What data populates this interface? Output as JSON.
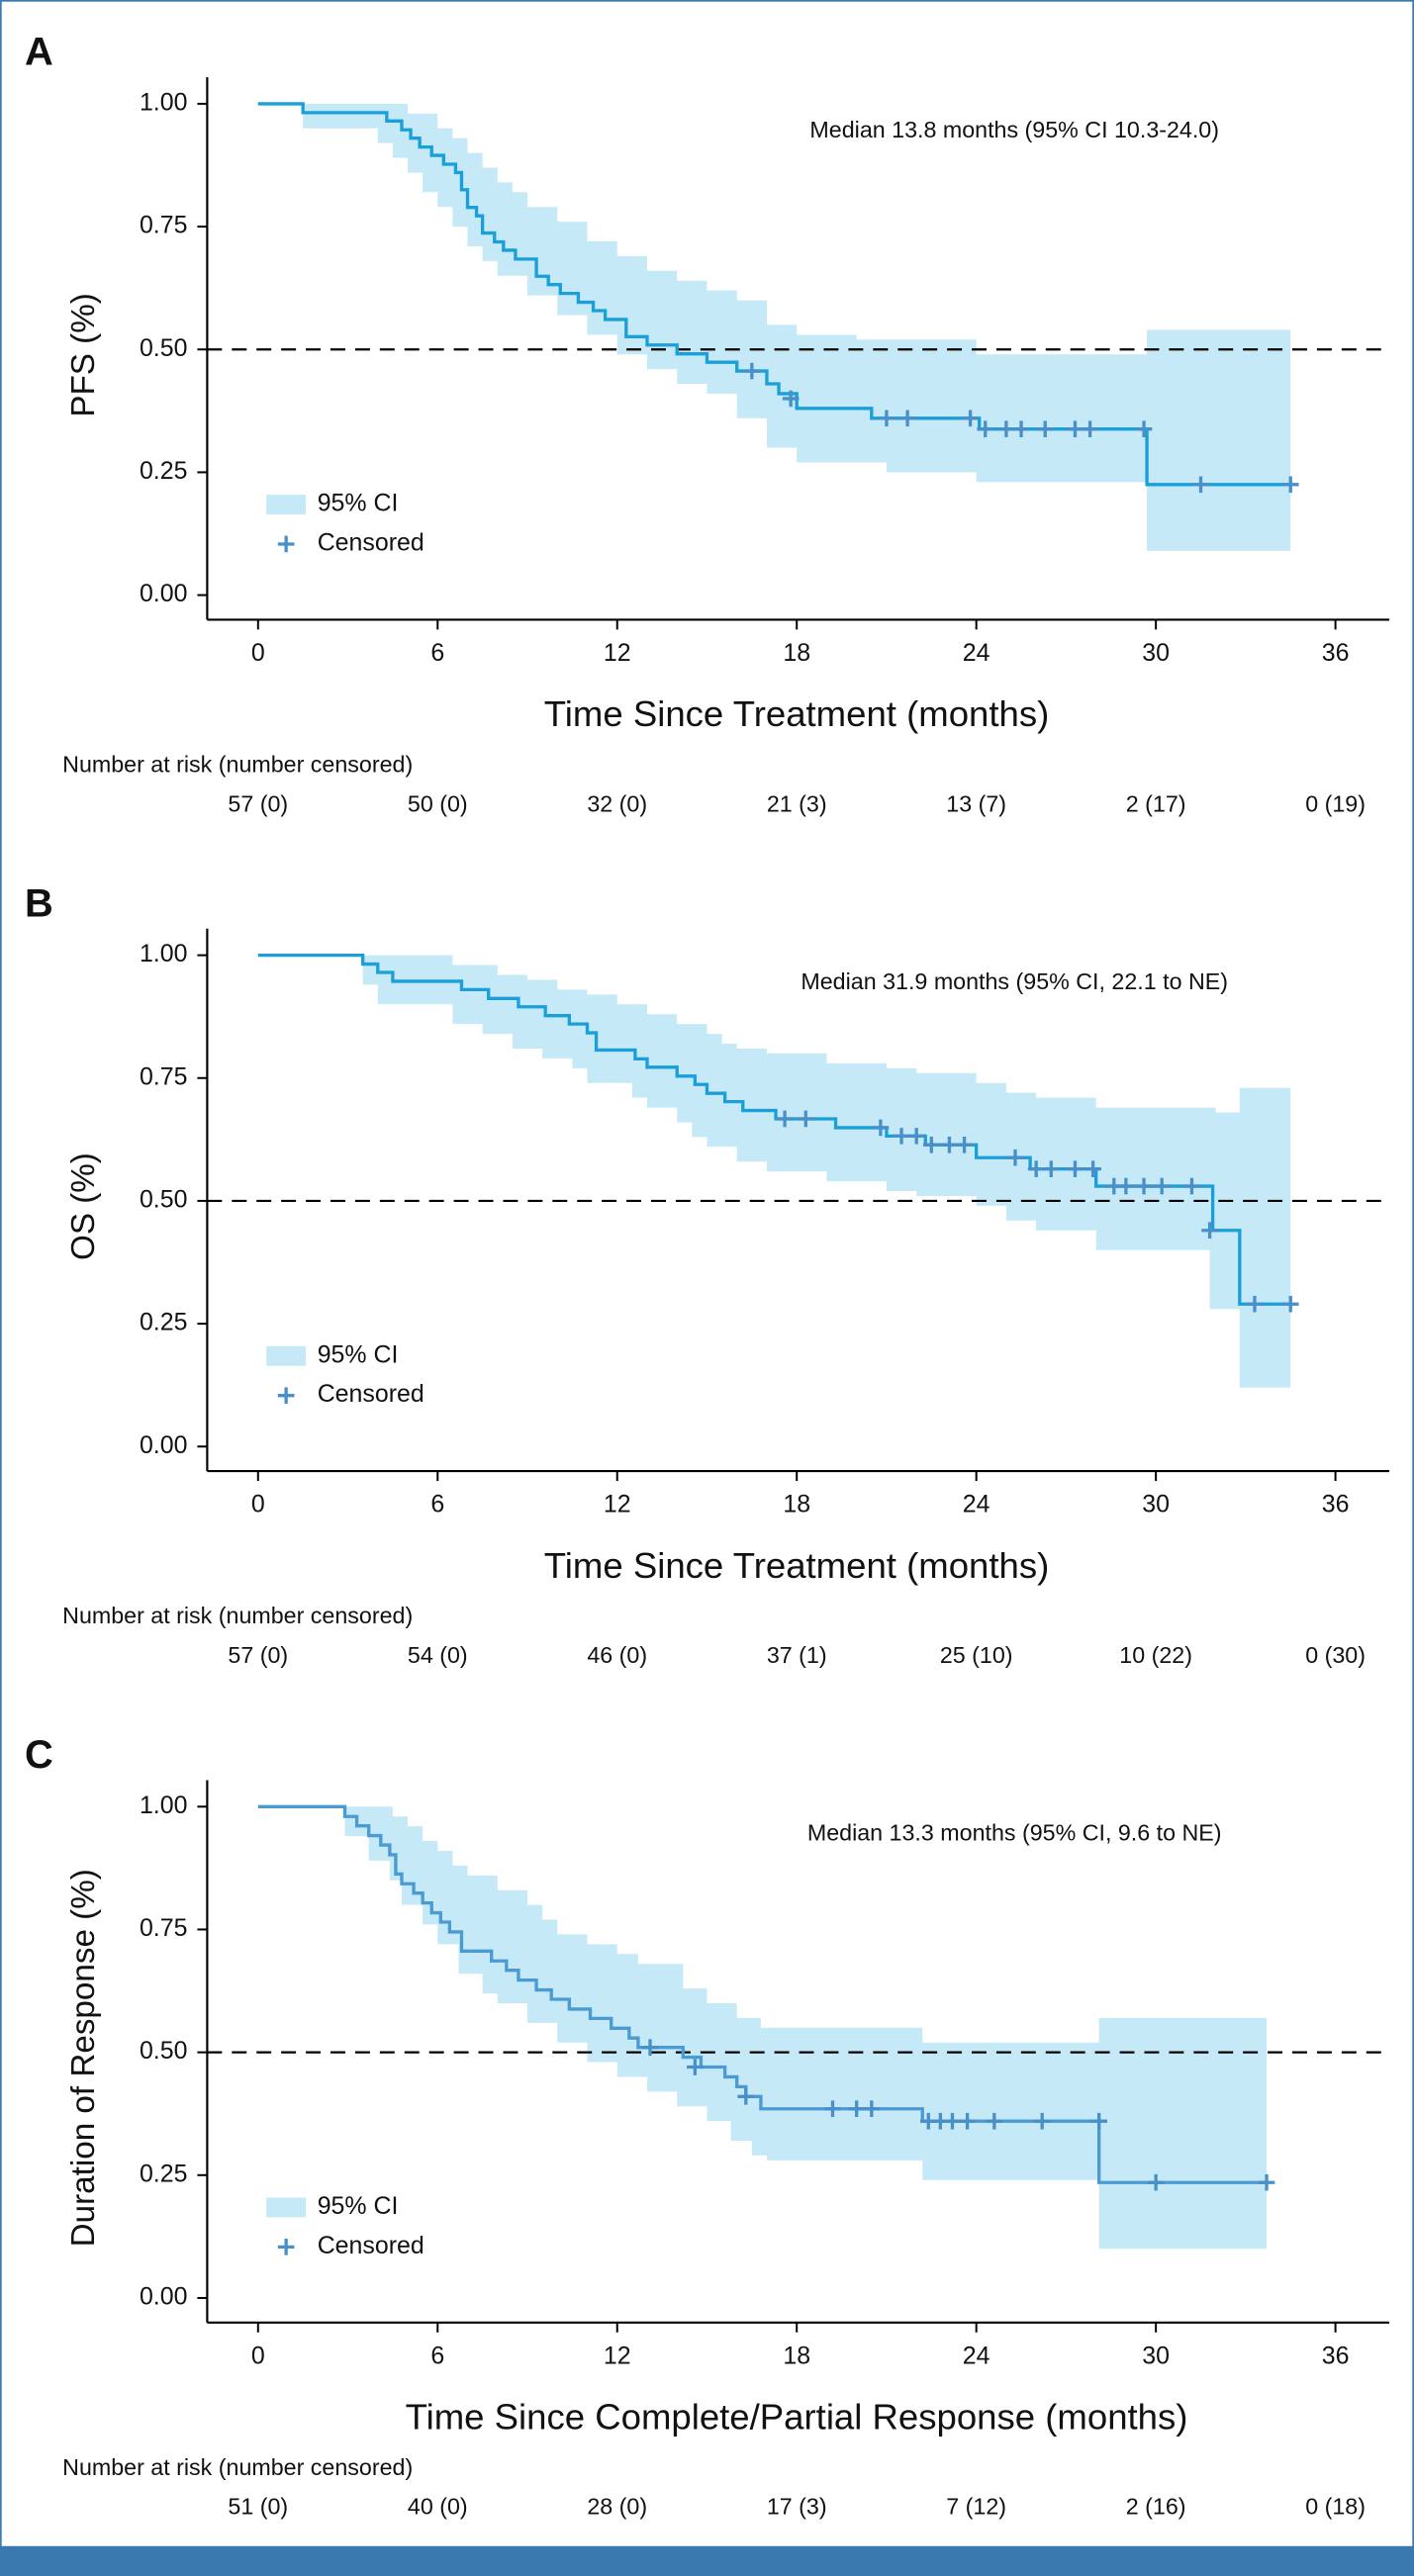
{
  "chart_data": [
    {
      "type": "step",
      "panel": "A",
      "annotation": "Median 13.8 months (95% CI 10.3-24.0)",
      "xlabel": "Time Since Treatment (months)",
      "ylabel": "PFS (%)",
      "xlim": [
        -1.7,
        37.8
      ],
      "xticks": [
        0,
        6,
        12,
        18,
        24,
        30,
        36
      ],
      "ylim": [
        -0.05,
        1.054
      ],
      "yticks": [
        {
          "value": 1,
          "label": "1.00"
        },
        {
          "value": 0.75,
          "label": "0.75"
        },
        {
          "value": 0.5,
          "label": "0.50"
        },
        {
          "value": 0.25,
          "label": "0.25"
        },
        {
          "value": 0,
          "label": "0.00"
        }
      ],
      "reference_line": 0.5,
      "color": "#1a9fd9",
      "x": [
        0,
        1.5,
        4.3,
        4.8,
        5.1,
        5.4,
        5.8,
        6.2,
        6.6,
        6.8,
        7.0,
        7.3,
        7.5,
        7.9,
        8.2,
        8.6,
        9.3,
        9.7,
        10.1,
        10.7,
        11.2,
        11.6,
        12.3,
        13.0,
        14.0,
        15.0,
        16.0,
        17.0,
        17.4,
        18.0,
        20.5,
        24.1,
        29.7,
        34.5
      ],
      "values": [
        1,
        0.982,
        0.965,
        0.947,
        0.93,
        0.912,
        0.895,
        0.877,
        0.86,
        0.825,
        0.789,
        0.772,
        0.737,
        0.719,
        0.702,
        0.684,
        0.649,
        0.632,
        0.614,
        0.596,
        0.579,
        0.561,
        0.526,
        0.509,
        0.491,
        0.474,
        0.456,
        0.43,
        0.41,
        0.38,
        0.36,
        0.338,
        0.225,
        0.225
      ],
      "ci_upper": {
        "x": [
          0,
          5,
          6,
          6.5,
          7,
          7.5,
          8,
          8.5,
          9,
          10,
          11,
          12,
          13,
          14,
          15,
          16,
          17,
          18,
          20,
          24,
          29.7,
          34.5
        ],
        "values": [
          1,
          0.98,
          0.95,
          0.93,
          0.9,
          0.87,
          0.84,
          0.82,
          0.79,
          0.76,
          0.72,
          0.69,
          0.66,
          0.64,
          0.62,
          0.6,
          0.55,
          0.53,
          0.52,
          0.49,
          0.54,
          0.54
        ]
      },
      "ci_lower": {
        "x": [
          0,
          1.5,
          4,
          4.5,
          5,
          5.5,
          6,
          6.5,
          7,
          7.5,
          8,
          9,
          10,
          11,
          12,
          13,
          14,
          15,
          16,
          17,
          18,
          21,
          24,
          29.7,
          34.5
        ],
        "values": [
          1,
          0.95,
          0.92,
          0.89,
          0.86,
          0.82,
          0.79,
          0.75,
          0.71,
          0.68,
          0.65,
          0.61,
          0.57,
          0.53,
          0.49,
          0.46,
          0.43,
          0.41,
          0.36,
          0.3,
          0.27,
          0.25,
          0.23,
          0.09,
          0.09
        ]
      },
      "ci": {
        "name": "95% CI",
        "color": "#c5e9f7"
      },
      "censored": {
        "name": "Censored",
        "color": "#4a90c8",
        "x": [
          16.5,
          17.8,
          21,
          21.7,
          23.8,
          24.3,
          25,
          25.5,
          26.3,
          27.3,
          27.8,
          29.6,
          31.5,
          34.5
        ],
        "values": [
          0.456,
          0.4,
          0.36,
          0.36,
          0.36,
          0.338,
          0.338,
          0.338,
          0.338,
          0.338,
          0.338,
          0.338,
          0.225,
          0.225
        ]
      },
      "risk_table_title": "Number at risk (number censored)",
      "risk_table": [
        "57 (0)",
        "50 (0)",
        "32 (0)",
        "21 (3)",
        "13 (7)",
        "2 (17)",
        "0 (19)"
      ]
    },
    {
      "type": "step",
      "panel": "B",
      "annotation": "Median 31.9 months (95% CI, 22.1 to NE)",
      "xlabel": "Time Since Treatment (months)",
      "ylabel": "OS (%)",
      "xlim": [
        -1.7,
        37.8
      ],
      "xticks": [
        0,
        6,
        12,
        18,
        24,
        30,
        36
      ],
      "ylim": [
        -0.05,
        1.054
      ],
      "yticks": [
        {
          "value": 1,
          "label": "1.00"
        },
        {
          "value": 0.75,
          "label": "0.75"
        },
        {
          "value": 0.5,
          "label": "0.50"
        },
        {
          "value": 0.25,
          "label": "0.25"
        },
        {
          "value": 0,
          "label": "0.00"
        }
      ],
      "reference_line": 0.5,
      "color": "#1a9fd9",
      "x": [
        0,
        3.5,
        4,
        4.5,
        6.8,
        7.7,
        8.7,
        9.6,
        10.4,
        11.0,
        11.3,
        12.6,
        13.0,
        14.0,
        14.6,
        15.0,
        15.6,
        16.2,
        17.3,
        19.3,
        21.0,
        22.3,
        24.0,
        25.8,
        28.0,
        31.9,
        32.8,
        34.5
      ],
      "values": [
        1,
        0.982,
        0.965,
        0.947,
        0.93,
        0.912,
        0.895,
        0.877,
        0.86,
        0.842,
        0.807,
        0.789,
        0.772,
        0.754,
        0.737,
        0.719,
        0.702,
        0.684,
        0.667,
        0.649,
        0.632,
        0.614,
        0.588,
        0.565,
        0.53,
        0.44,
        0.29,
        0.29
      ],
      "ci_upper": {
        "x": [
          0,
          6.5,
          8,
          9,
          10,
          11,
          12,
          13,
          14,
          15,
          15.5,
          16,
          17,
          19,
          21,
          22,
          24,
          25,
          26,
          28,
          32,
          32.8,
          34.5
        ],
        "values": [
          1,
          0.98,
          0.96,
          0.95,
          0.93,
          0.92,
          0.9,
          0.88,
          0.86,
          0.84,
          0.82,
          0.81,
          0.8,
          0.78,
          0.77,
          0.76,
          0.74,
          0.72,
          0.71,
          0.69,
          0.68,
          0.73,
          0.73
        ]
      },
      "ci_lower": {
        "x": [
          0,
          3.5,
          4,
          6.5,
          7.5,
          8.5,
          9.5,
          10.5,
          11,
          12.5,
          13,
          14,
          14.5,
          15,
          16,
          17,
          19,
          21,
          22,
          24,
          25,
          26,
          28,
          31.8,
          32.8,
          34.5
        ],
        "values": [
          1,
          0.94,
          0.9,
          0.86,
          0.84,
          0.81,
          0.79,
          0.77,
          0.74,
          0.71,
          0.69,
          0.66,
          0.63,
          0.61,
          0.58,
          0.56,
          0.54,
          0.52,
          0.51,
          0.49,
          0.46,
          0.44,
          0.4,
          0.28,
          0.12,
          0.12
        ]
      },
      "ci": {
        "name": "95% CI",
        "color": "#c5e9f7"
      },
      "censored": {
        "name": "Censored",
        "color": "#4a90c8",
        "x": [
          17.6,
          18.3,
          20.8,
          21.5,
          22,
          22.5,
          23.1,
          23.6,
          25.3,
          26,
          26.5,
          27.3,
          27.9,
          28.6,
          29,
          29.6,
          30.2,
          31.2,
          31.8,
          33.3,
          34.5
        ],
        "values": [
          0.667,
          0.667,
          0.649,
          0.632,
          0.632,
          0.614,
          0.614,
          0.614,
          0.588,
          0.565,
          0.565,
          0.565,
          0.565,
          0.53,
          0.53,
          0.53,
          0.53,
          0.53,
          0.44,
          0.29,
          0.29
        ]
      },
      "risk_table_title": "Number at risk (number censored)",
      "risk_table": [
        "57 (0)",
        "54 (0)",
        "46 (0)",
        "37 (1)",
        "25 (10)",
        "10 (22)",
        "0 (30)"
      ]
    },
    {
      "type": "step",
      "panel": "C",
      "annotation": "Median 13.3 months (95% CI, 9.6 to NE)",
      "xlabel": "Time Since Complete/Partial Response (months)",
      "ylabel": "Duration of Response (%)",
      "xlim": [
        -1.7,
        37.8
      ],
      "xticks": [
        0,
        6,
        12,
        18,
        24,
        30,
        36
      ],
      "ylim": [
        -0.05,
        1.054
      ],
      "yticks": [
        {
          "value": 1,
          "label": "1.00"
        },
        {
          "value": 0.75,
          "label": "0.75"
        },
        {
          "value": 0.5,
          "label": "0.50"
        },
        {
          "value": 0.25,
          "label": "0.25"
        },
        {
          "value": 0,
          "label": "0.00"
        }
      ],
      "reference_line": 0.5,
      "color": "#4a9ad4",
      "x": [
        0,
        2.9,
        3.3,
        3.7,
        4.1,
        4.4,
        4.6,
        4.8,
        5.2,
        5.5,
        5.8,
        6.1,
        6.4,
        6.8,
        7.8,
        8.3,
        8.7,
        9.3,
        9.8,
        10.4,
        11.1,
        11.8,
        12.4,
        12.7,
        14.2,
        14.8,
        15.6,
        16.0,
        16.3,
        16.8,
        22.2,
        28.1,
        33.7
      ],
      "values": [
        1,
        0.98,
        0.961,
        0.941,
        0.922,
        0.902,
        0.863,
        0.843,
        0.824,
        0.804,
        0.784,
        0.765,
        0.745,
        0.706,
        0.686,
        0.667,
        0.647,
        0.627,
        0.608,
        0.588,
        0.569,
        0.549,
        0.529,
        0.51,
        0.49,
        0.47,
        0.45,
        0.43,
        0.41,
        0.385,
        0.36,
        0.235,
        0.235
      ],
      "ci_upper": {
        "x": [
          0,
          4.5,
          5,
          5.5,
          6,
          6.5,
          7,
          8,
          9,
          9.5,
          10,
          11,
          12,
          12.7,
          14.2,
          15,
          16,
          16.8,
          22.2,
          28.1,
          33.7
        ],
        "values": [
          1,
          0.98,
          0.96,
          0.93,
          0.91,
          0.88,
          0.86,
          0.83,
          0.8,
          0.77,
          0.74,
          0.72,
          0.7,
          0.68,
          0.63,
          0.6,
          0.57,
          0.55,
          0.52,
          0.57,
          0.57
        ]
      },
      "ci_lower": {
        "x": [
          0,
          2.9,
          3.7,
          4.4,
          4.8,
          5.5,
          6,
          6.7,
          7.5,
          8,
          9,
          10,
          11,
          12,
          13,
          14,
          15,
          15.8,
          16.5,
          17,
          22.2,
          28.1,
          33.7
        ],
        "values": [
          1,
          0.94,
          0.89,
          0.85,
          0.8,
          0.76,
          0.72,
          0.66,
          0.62,
          0.6,
          0.56,
          0.52,
          0.48,
          0.45,
          0.42,
          0.39,
          0.36,
          0.32,
          0.29,
          0.28,
          0.24,
          0.1,
          0.1
        ]
      },
      "ci": {
        "name": "95% CI",
        "color": "#c5e9f7"
      },
      "censored": {
        "name": "Censored",
        "color": "#4a90c8",
        "x": [
          13.1,
          14.6,
          16.3,
          19.2,
          20,
          20.5,
          22.4,
          22.8,
          23.2,
          23.7,
          24.6,
          26.2,
          28.1,
          30,
          33.7
        ],
        "values": [
          0.51,
          0.47,
          0.41,
          0.385,
          0.385,
          0.385,
          0.36,
          0.36,
          0.36,
          0.36,
          0.36,
          0.36,
          0.36,
          0.235,
          0.235
        ]
      },
      "risk_table_title": "Number at risk (number censored)",
      "risk_table": [
        "51 (0)",
        "40 (0)",
        "28 (0)",
        "17 (3)",
        "7 (12)",
        "2 (16)",
        "0 (18)"
      ]
    }
  ]
}
